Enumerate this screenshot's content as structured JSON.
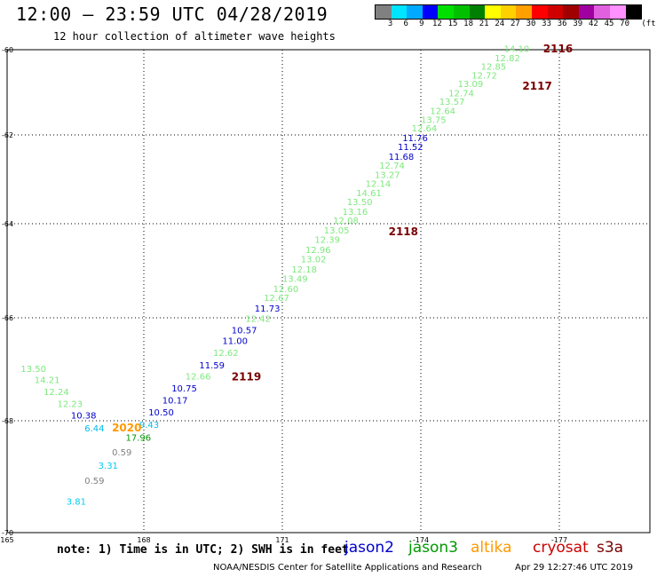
{
  "header": {
    "title": "12:00 – 23:59 UTC 04/28/2019",
    "subtitle": "12 hour collection of altimeter wave heights"
  },
  "legend": {
    "colors": [
      "#808080",
      "#00e5ff",
      "#00aaff",
      "#0000ff",
      "#00e000",
      "#00c000",
      "#008000",
      "#ffff00",
      "#ffd000",
      "#ffa000",
      "#ff0000",
      "#d00000",
      "#a00000",
      "#a000a0",
      "#e060e0",
      "#ff90ff",
      "#000000"
    ],
    "labels": [
      "3",
      "6",
      "9",
      "12",
      "15",
      "18",
      "21",
      "24",
      "27",
      "30",
      "33",
      "36",
      "39",
      "42",
      "45",
      "70"
    ],
    "unit": "(ft)"
  },
  "axes": {
    "lat_labels": [
      "-60",
      "-62",
      "-64",
      "-66",
      "-68",
      "-70"
    ],
    "lon_labels": [
      "165",
      "168",
      "171",
      "-174",
      "-177"
    ]
  },
  "observations": [
    {
      "text": "14.10",
      "color": "#7ee87e",
      "lat": -60.05,
      "lon": 175.8
    },
    {
      "text": "12.82",
      "color": "#7ee87e",
      "lat": -60.27,
      "lon": 175.6
    },
    {
      "text": "12.85",
      "color": "#7ee87e",
      "lat": -60.47,
      "lon": 175.3
    },
    {
      "text": "12.72",
      "color": "#7ee87e",
      "lat": -60.68,
      "lon": 175.1
    },
    {
      "text": "13.09",
      "color": "#7ee87e",
      "lat": -60.88,
      "lon": 174.8
    },
    {
      "text": "12.74",
      "color": "#7ee87e",
      "lat": -61.09,
      "lon": 174.6
    },
    {
      "text": "13.57",
      "color": "#7ee87e",
      "lat": -61.29,
      "lon": 174.4
    },
    {
      "text": "12.64",
      "color": "#7ee87e",
      "lat": -61.51,
      "lon": 174.2
    },
    {
      "text": "13.75",
      "color": "#7ee87e",
      "lat": -61.72,
      "lon": 174.0
    },
    {
      "text": "12.64",
      "color": "#7ee87e",
      "lat": -61.92,
      "lon": 173.8
    },
    {
      "text": "11.76",
      "color": "#0000cc",
      "lat": -62.14,
      "lon": 173.6
    },
    {
      "text": "11.52",
      "color": "#0000cc",
      "lat": -62.34,
      "lon": 173.5
    },
    {
      "text": "11.68",
      "color": "#0000cc",
      "lat": -62.56,
      "lon": 173.3
    },
    {
      "text": "12.74",
      "color": "#7ee87e",
      "lat": -62.76,
      "lon": 173.1
    },
    {
      "text": "13.27",
      "color": "#7ee87e",
      "lat": -62.97,
      "lon": 173.0
    },
    {
      "text": "12.14",
      "color": "#7ee87e",
      "lat": -63.17,
      "lon": 172.8
    },
    {
      "text": "14.61",
      "color": "#7ee87e",
      "lat": -63.38,
      "lon": 172.6
    },
    {
      "text": "13.50",
      "color": "#7ee87e",
      "lat": -63.58,
      "lon": 172.4
    },
    {
      "text": "13.16",
      "color": "#7ee87e",
      "lat": -63.8,
      "lon": 172.3
    },
    {
      "text": "12.08",
      "color": "#7ee87e",
      "lat": -64.0,
      "lon": 172.1
    },
    {
      "text": "13.05",
      "color": "#7ee87e",
      "lat": -64.21,
      "lon": 171.9
    },
    {
      "text": "12.39",
      "color": "#7ee87e",
      "lat": -64.41,
      "lon": 171.7
    },
    {
      "text": "12.96",
      "color": "#7ee87e",
      "lat": -64.62,
      "lon": 171.5
    },
    {
      "text": "13.02",
      "color": "#7ee87e",
      "lat": -64.82,
      "lon": 171.4
    },
    {
      "text": "12.18",
      "color": "#7ee87e",
      "lat": -65.04,
      "lon": 171.2
    },
    {
      "text": "13.49",
      "color": "#7ee87e",
      "lat": -65.24,
      "lon": 171.0
    },
    {
      "text": "12.60",
      "color": "#7ee87e",
      "lat": -65.45,
      "lon": 170.8
    },
    {
      "text": "12.67",
      "color": "#7ee87e",
      "lat": -65.64,
      "lon": 170.6
    },
    {
      "text": "11.73",
      "color": "#0000cc",
      "lat": -65.87,
      "lon": 170.4
    },
    {
      "text": "12.42",
      "color": "#7ee87e",
      "lat": -66.08,
      "lon": 170.2
    },
    {
      "text": "10.57",
      "color": "#0000cc",
      "lat": -66.3,
      "lon": 169.9
    },
    {
      "text": "11.00",
      "color": "#0000cc",
      "lat": -66.51,
      "lon": 169.7
    },
    {
      "text": "12.62",
      "color": "#7ee87e",
      "lat": -66.74,
      "lon": 169.5
    },
    {
      "text": "11.59",
      "color": "#0000cc",
      "lat": -66.98,
      "lon": 169.2
    },
    {
      "text": "12.66",
      "color": "#7ee87e",
      "lat": -67.2,
      "lon": 168.9
    },
    {
      "text": "10.75",
      "color": "#0000cc",
      "lat": -67.43,
      "lon": 168.6
    },
    {
      "text": "10.17",
      "color": "#0000cc",
      "lat": -67.66,
      "lon": 168.4
    },
    {
      "text": "10.50",
      "color": "#0000cc",
      "lat": -67.9,
      "lon": 168.1
    },
    {
      "text": "9.43",
      "color": "#00bbee",
      "lat": -68.13,
      "lon": 167.9
    },
    {
      "text": "17.96",
      "color": "#009900",
      "lat": -68.36,
      "lon": 167.6
    },
    {
      "text": "13.50",
      "color": "#7ee87e",
      "lat": -67.05,
      "lon": 165.3
    },
    {
      "text": "14.21",
      "color": "#7ee87e",
      "lat": -67.27,
      "lon": 165.6
    },
    {
      "text": "12.24",
      "color": "#7ee87e",
      "lat": -67.5,
      "lon": 165.8
    },
    {
      "text": "12.23",
      "color": "#7ee87e",
      "lat": -67.73,
      "lon": 166.1
    },
    {
      "text": "10.38",
      "color": "#0000cc",
      "lat": -67.96,
      "lon": 166.4
    },
    {
      "text": "6.44",
      "color": "#00bbee",
      "lat": -68.19,
      "lon": 166.7
    },
    {
      "text": "0.59",
      "color": "#808080",
      "lat": -68.62,
      "lon": 167.3
    },
    {
      "text": "3.31",
      "color": "#00ccee",
      "lat": -68.86,
      "lon": 167.0
    },
    {
      "text": "0.59",
      "color": "#808080",
      "lat": -69.13,
      "lon": 166.7
    },
    {
      "text": "3.81",
      "color": "#00ccee",
      "lat": -69.5,
      "lon": 166.3
    }
  ],
  "times": [
    {
      "text": "2116",
      "color": "#7a0000",
      "lat": -60.02,
      "lon": 176.65
    },
    {
      "text": "2117",
      "color": "#7a0000",
      "lat": -60.9,
      "lon": 176.2
    },
    {
      "text": "2118",
      "color": "#7a0000",
      "lat": -64.21,
      "lon": 173.3
    },
    {
      "text": "2119",
      "color": "#7a0000",
      "lat": -67.18,
      "lon": 169.9
    },
    {
      "text": "2020",
      "color": "#ff9900",
      "lat": -68.16,
      "lon": 167.3
    }
  ],
  "footer": {
    "note": "note: 1) Time is in UTC; 2) SWH is in feet",
    "satellites": [
      {
        "name": "jason2",
        "color": "#0000cc"
      },
      {
        "name": "jason3",
        "color": "#009900"
      },
      {
        "name": "altika",
        "color": "#ff9900"
      },
      {
        "name": "cryosat",
        "color": "#cc0000"
      },
      {
        "name": "s3a",
        "color": "#7a0000"
      }
    ],
    "credit": "NOAA/NESDIS Center for Satellite Applications and Research",
    "timestamp": "Apr 29 12:27:46 UTC 2019"
  }
}
